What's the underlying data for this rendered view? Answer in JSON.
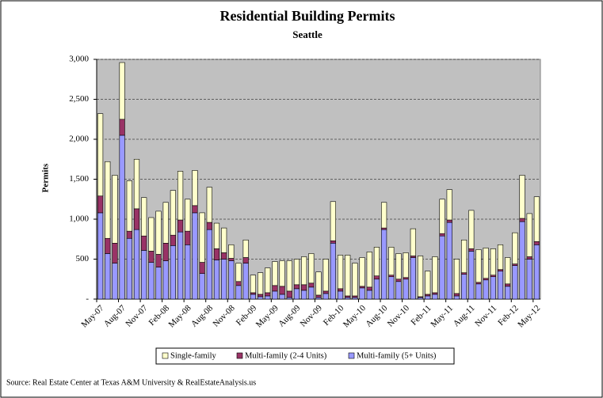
{
  "chart_data": {
    "type": "stacked_bar",
    "title": "Residential Building Permits",
    "subtitle": "Seattle",
    "y_label": "Permits",
    "source": "Source: Real Estate Center at Texas A&M University & RealEstateAnalysis.us",
    "categories": [
      "May-07",
      null,
      null,
      "Aug-07",
      null,
      null,
      "Nov-07",
      null,
      null,
      "Feb-08",
      null,
      null,
      "May-08",
      null,
      null,
      "Aug-08",
      null,
      null,
      "Nov-08",
      null,
      null,
      "Feb-09",
      null,
      null,
      "May-09",
      null,
      null,
      "Aug-09",
      null,
      null,
      "Nov-09",
      null,
      null,
      "Feb-10",
      null,
      null,
      "May-10",
      null,
      null,
      "Aug-10",
      null,
      null,
      "Nov-10",
      null,
      null,
      "Feb-11",
      null,
      null,
      "May-11",
      null,
      null,
      "Aug-11",
      null,
      null,
      "Nov-11",
      null,
      null,
      "Feb-12",
      null,
      null,
      "May-12"
    ],
    "series": [
      {
        "name": "Single-family",
        "color": "#ffffcc",
        "values": [
          1030,
          960,
          850,
          710,
          630,
          620,
          480,
          420,
          540,
          510,
          560,
          610,
          400,
          440,
          620,
          440,
          320,
          310,
          170,
          230,
          220,
          220,
          270,
          310,
          300,
          320,
          380,
          320,
          350,
          370,
          290,
          400,
          490,
          420,
          510,
          410,
          360,
          440,
          360,
          320,
          350,
          320,
          310,
          340,
          510,
          290,
          450,
          430,
          380,
          430,
          410,
          480,
          410,
          380,
          330,
          310,
          330,
          390,
          540,
          540,
          560
        ]
      },
      {
        "name": "Multi-family (2-4 Units)",
        "color": "#993366",
        "values": [
          210,
          190,
          250,
          200,
          90,
          260,
          180,
          140,
          160,
          220,
          130,
          150,
          170,
          90,
          140,
          90,
          140,
          80,
          30,
          50,
          70,
          20,
          30,
          40,
          70,
          100,
          80,
          50,
          70,
          50,
          30,
          30,
          30,
          30,
          20,
          20,
          20,
          40,
          40,
          20,
          20,
          30,
          20,
          20,
          10,
          20,
          20,
          30,
          30,
          30,
          20,
          30,
          20,
          20,
          20,
          20,
          30,
          20,
          40,
          30,
          40
        ]
      },
      {
        "name": "Multi-family (5+ Units)",
        "color": "#9999ff",
        "values": [
          1080,
          570,
          450,
          2050,
          760,
          870,
          610,
          460,
          400,
          480,
          670,
          840,
          680,
          1080,
          320,
          870,
          490,
          500,
          480,
          170,
          450,
          60,
          30,
          40,
          100,
          60,
          20,
          130,
          110,
          150,
          20,
          70,
          700,
          100,
          20,
          20,
          140,
          110,
          250,
          870,
          280,
          220,
          250,
          520,
          20,
          40,
          60,
          790,
          960,
          40,
          310,
          600,
          190,
          240,
          280,
          350,
          160,
          420,
          970,
          500,
          680
        ]
      }
    ],
    "ylim": [
      0,
      3000
    ],
    "yticks": [
      {
        "value": 0,
        "label": "-"
      },
      500,
      {
        "value": 1000,
        "label": "1,000"
      },
      {
        "value": 1500,
        "label": "1,500"
      },
      {
        "value": 2000,
        "label": "2,000"
      },
      {
        "value": 2500,
        "label": "2,500"
      },
      {
        "value": 3000,
        "label": "3,000"
      }
    ],
    "grid": true
  }
}
